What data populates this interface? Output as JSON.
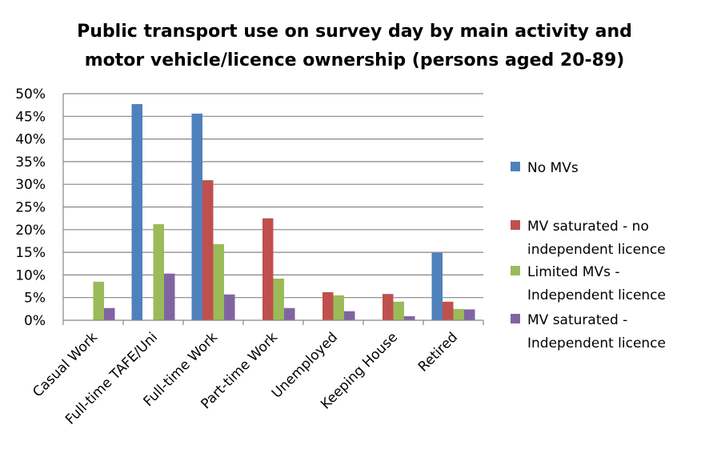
{
  "chart_data": {
    "type": "bar",
    "title": "Public transport use on survey day by main activity and motor vehicle/licence ownership (persons aged 20-89)",
    "title_lines": [
      "Public transport use on survey day by main activity and",
      "motor vehicle/licence ownership (persons aged 20-89)"
    ],
    "xlabel": "",
    "ylabel": "",
    "ylim": [
      0,
      0.5
    ],
    "yticks": [
      0,
      0.05,
      0.1,
      0.15,
      0.2,
      0.25,
      0.3,
      0.35,
      0.4,
      0.45,
      0.5
    ],
    "ytick_labels": [
      "0%",
      "5%",
      "10%",
      "15%",
      "20%",
      "25%",
      "30%",
      "35%",
      "40%",
      "45%",
      "50%"
    ],
    "grid": true,
    "legend_position": "right",
    "categories": [
      "Casual Work",
      "Full-time TAFE/Uni",
      "Full-time Work",
      "Part-time Work",
      "Unemployed",
      "Keeping House",
      "Retired"
    ],
    "series": [
      {
        "name": "No MVs",
        "legend_lines": [
          "No MVs"
        ],
        "color": "#4f81bd",
        "values": [
          0,
          0.477,
          0.456,
          0,
          0,
          0,
          0.149
        ]
      },
      {
        "name": "MV saturated - no independent licence",
        "legend_lines": [
          "MV saturated - no",
          "independent licence"
        ],
        "color": "#c0504d",
        "values": [
          0,
          0,
          0.309,
          0.225,
          0.062,
          0.058,
          0.041
        ]
      },
      {
        "name": "Limited MVs - Independent licence",
        "legend_lines": [
          "Limited MVs -",
          "Independent licence"
        ],
        "color": "#9bbb59",
        "values": [
          0.085,
          0.212,
          0.168,
          0.092,
          0.055,
          0.041,
          0.025
        ]
      },
      {
        "name": "MV saturated - Independent licence",
        "legend_lines": [
          "MV saturated -",
          "Independent licence"
        ],
        "color": "#8064a2",
        "values": [
          0.027,
          0.103,
          0.057,
          0.027,
          0.02,
          0.009,
          0.024
        ]
      }
    ]
  }
}
